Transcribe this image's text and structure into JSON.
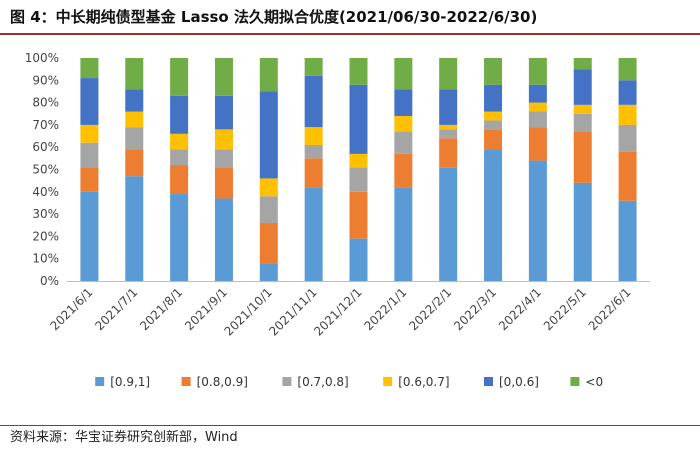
{
  "header": {
    "title": "图 4：中长期纯债型基金 Lasso 法久期拟合优度(2021/06/30-2022/6/30)"
  },
  "footer": {
    "source": "资料来源：华宝证券研究创新部，Wind"
  },
  "chart_data": {
    "type": "bar",
    "stacked": true,
    "title": "",
    "xlabel": "",
    "ylabel": "",
    "ylim": [
      0,
      100
    ],
    "ytick_format": "percent",
    "yticks": [
      0,
      10,
      20,
      30,
      40,
      50,
      60,
      70,
      80,
      90,
      100
    ],
    "grid": false,
    "legend_position": "bottom",
    "categories": [
      "2021/6/1",
      "2021/7/1",
      "2021/8/1",
      "2021/9/1",
      "2021/10/1",
      "2021/11/1",
      "2021/12/1",
      "2022/1/1",
      "2022/2/1",
      "2022/3/1",
      "2022/4/1",
      "2022/5/1",
      "2022/6/1"
    ],
    "series": [
      {
        "name": "[0.9,1]",
        "color": "#5b9bd5",
        "values": [
          40,
          47,
          39,
          37,
          8,
          42,
          19,
          42,
          51,
          59,
          54,
          44,
          36
        ]
      },
      {
        "name": "[0.8,0.9]",
        "color": "#ed7d31",
        "values": [
          11,
          12,
          13,
          14,
          18,
          13,
          21,
          15,
          13,
          9,
          15,
          23,
          22
        ]
      },
      {
        "name": "[0.7,0.8]",
        "color": "#a5a5a5",
        "values": [
          11,
          10,
          7,
          8,
          12,
          6,
          11,
          10,
          4,
          4,
          7,
          8,
          12
        ]
      },
      {
        "name": "[0.6,0.7]",
        "color": "#ffc000",
        "values": [
          8,
          7,
          7,
          9,
          8,
          8,
          6,
          7,
          2,
          4,
          4,
          4,
          9
        ]
      },
      {
        "name": "[0,0.6]",
        "color": "#4472c4",
        "values": [
          21,
          10,
          17,
          15,
          39,
          23,
          31,
          12,
          16,
          12,
          8,
          16,
          11
        ]
      },
      {
        "name": "<0",
        "color": "#70ad47",
        "values": [
          9,
          14,
          17,
          17,
          15,
          8,
          12,
          14,
          14,
          12,
          12,
          5,
          10
        ]
      }
    ]
  }
}
